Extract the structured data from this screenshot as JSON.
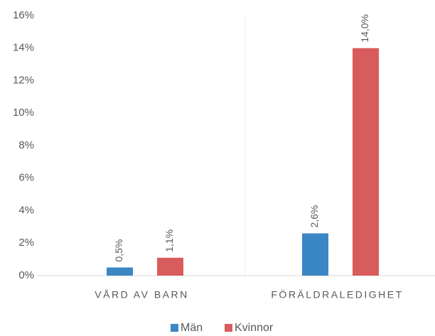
{
  "chart_data": {
    "type": "bar",
    "categories": [
      "VÅRD AV BARN",
      "FÖRÄLDRALEDIGHET"
    ],
    "series": [
      {
        "name": "Män",
        "color": "#3b87c6",
        "values": [
          0.5,
          2.6
        ],
        "value_labels": [
          "0,5%",
          "2,6%"
        ]
      },
      {
        "name": "Kvinnor",
        "color": "#d95c5c",
        "values": [
          1.1,
          14.0
        ],
        "value_labels": [
          "1,1%",
          "14,0%"
        ]
      }
    ],
    "ylim": [
      0,
      16
    ],
    "yticks": [
      {
        "value": 0,
        "label": "0%"
      },
      {
        "value": 2,
        "label": "2%"
      },
      {
        "value": 4,
        "label": "4%"
      },
      {
        "value": 6,
        "label": "6%"
      },
      {
        "value": 8,
        "label": "8%"
      },
      {
        "value": 10,
        "label": "10%"
      },
      {
        "value": 12,
        "label": "12%"
      },
      {
        "value": 14,
        "label": "14%"
      },
      {
        "value": 16,
        "label": "16%"
      }
    ],
    "grid": false,
    "legend": "bottom"
  }
}
